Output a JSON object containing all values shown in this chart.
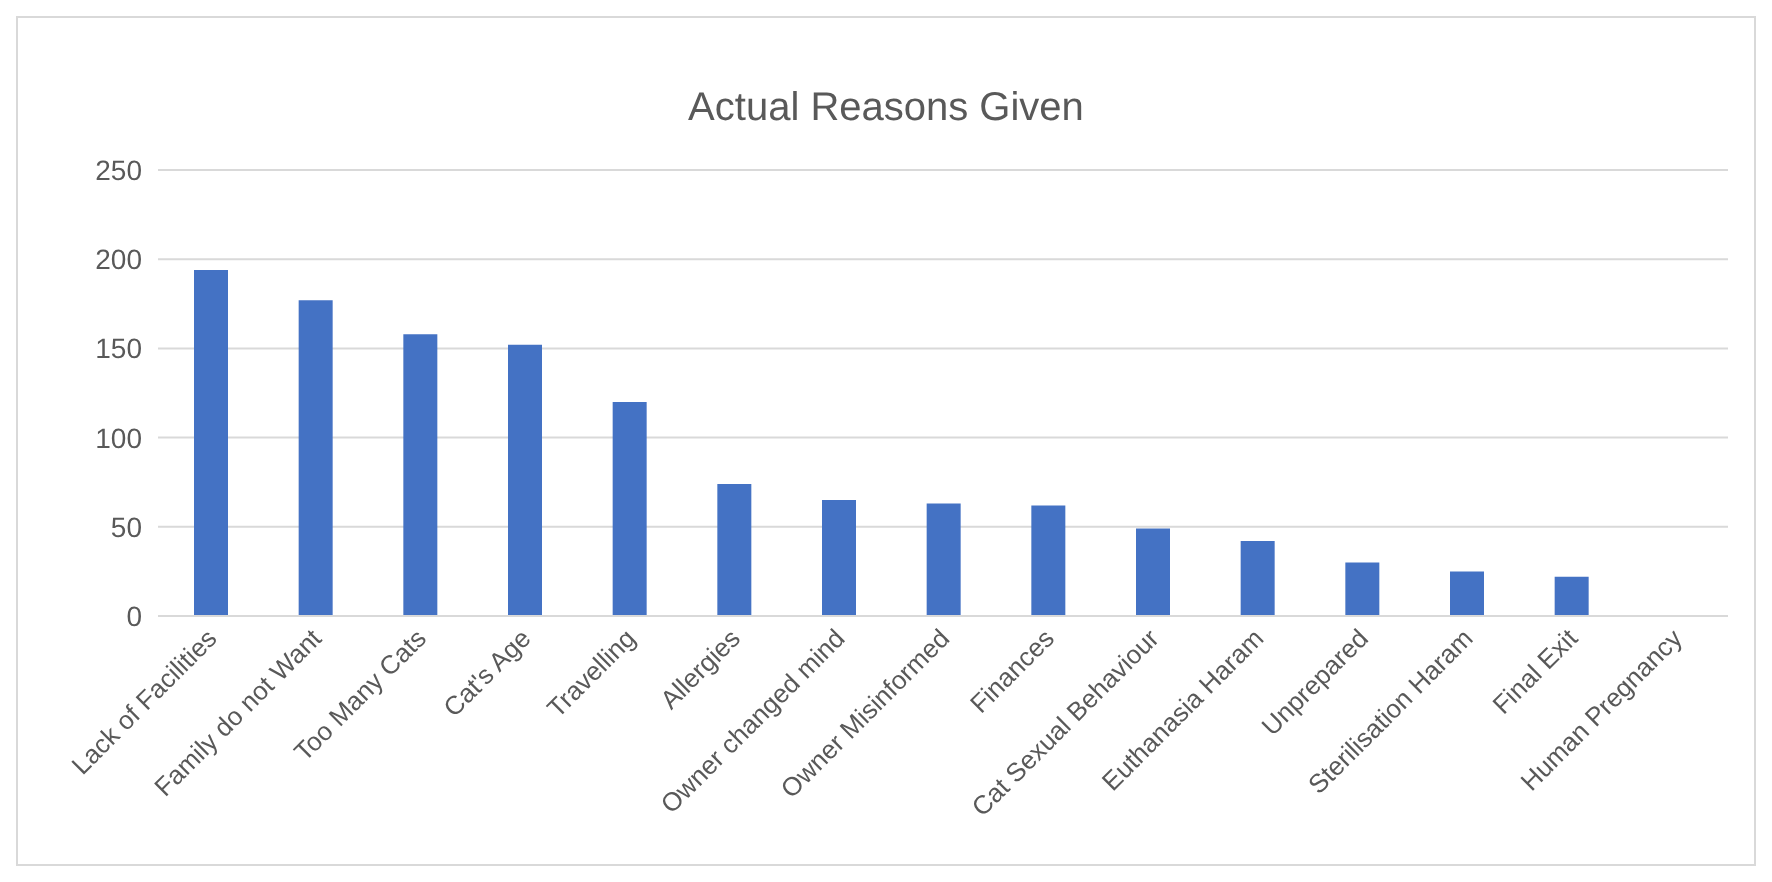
{
  "chart_data": {
    "type": "bar",
    "title": "Actual Reasons Given",
    "categories": [
      "Lack of Facilities",
      "Family do not Want",
      "Too Many Cats",
      "Cat's Age",
      "Travelling",
      "Allergies",
      "Owner changed mind",
      "Owner Misinformed",
      "Finances",
      "Cat Sexual Behaviour",
      "Euthanasia Haram",
      "Unprepared",
      "Sterilisation Haram",
      "Final Exit",
      "Human Pregnancy"
    ],
    "values": [
      194,
      177,
      158,
      152,
      120,
      74,
      65,
      63,
      62,
      49,
      42,
      30,
      25,
      22,
      0
    ],
    "color": "#4472c4",
    "ylim": [
      0,
      250
    ],
    "yticks": [
      0,
      50,
      100,
      150,
      200,
      250
    ],
    "grid": "y"
  }
}
